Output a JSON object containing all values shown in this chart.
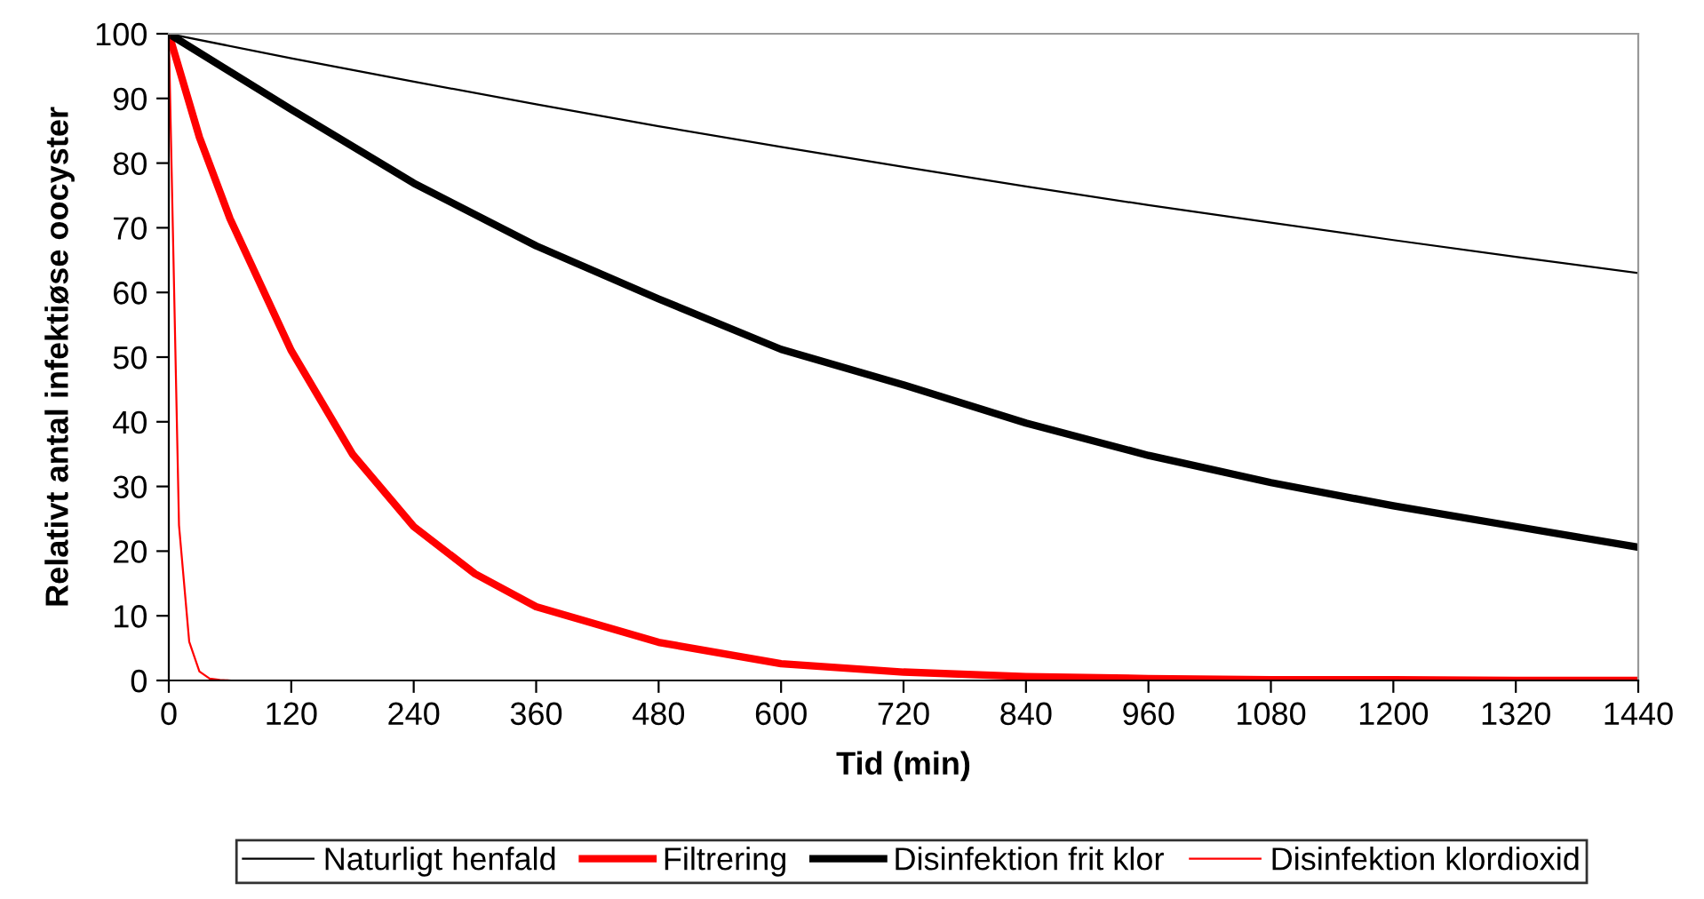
{
  "chart_data": {
    "type": "line",
    "xlabel": "Tid (min)",
    "ylabel": "Relativt antal infektiøse oocyster",
    "xlim": [
      0,
      1440
    ],
    "xticks": [
      0,
      120,
      240,
      360,
      480,
      600,
      720,
      840,
      960,
      1080,
      1200,
      1320,
      1440
    ],
    "ylim": [
      0,
      100
    ],
    "yticks": [
      0,
      10,
      20,
      30,
      40,
      50,
      60,
      70,
      80,
      90,
      100
    ],
    "grid": false,
    "legend": "bottom",
    "marker": "none",
    "line_style": "solid",
    "series": [
      {
        "name": "Naturligt henfald",
        "color": "#000000",
        "x": [
          0,
          120,
          240,
          360,
          480,
          600,
          720,
          840,
          960,
          1080,
          1200,
          1320,
          1440
        ],
        "values": [
          100,
          96.2,
          92.6,
          89.1,
          85.7,
          82.5,
          79.4,
          76.4,
          73.5,
          70.8,
          68.1,
          65.5,
          63.0
        ]
      },
      {
        "name": "Filtrering",
        "color": "#ff0000",
        "x": [
          0,
          30,
          60,
          120,
          180,
          240,
          300,
          360,
          480,
          600,
          720,
          840,
          960,
          1080,
          1200,
          1320,
          1440
        ],
        "values": [
          100,
          84,
          71.4,
          51,
          35,
          23.8,
          16.5,
          11.4,
          5.9,
          2.6,
          1.3,
          0.6,
          0.3,
          0.1,
          0.1,
          0,
          0
        ]
      },
      {
        "name": "Disinfektion frit klor",
        "color": "#000000",
        "x": [
          0,
          120,
          240,
          360,
          480,
          600,
          720,
          840,
          960,
          1080,
          1200,
          1320,
          1440
        ],
        "values": [
          100,
          88.3,
          76.9,
          67.2,
          59,
          51.2,
          45.7,
          39.8,
          34.8,
          30.6,
          27,
          23.8,
          20.6
        ]
      },
      {
        "name": "Disinfektion klordioxid",
        "color": "#ff0000",
        "x": [
          0,
          10,
          20,
          30,
          40,
          50,
          60
        ],
        "values": [
          100,
          24,
          6,
          1.4,
          0.3,
          0.1,
          0
        ]
      }
    ]
  }
}
